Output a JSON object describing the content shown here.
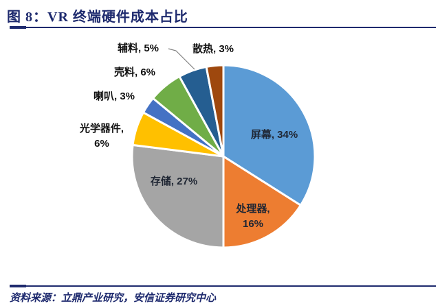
{
  "figure": {
    "title": "图 8：VR 终端硬件成本占比",
    "source": "资料来源：立鼎产业研究，安信证券研究中心"
  },
  "chart_data": {
    "type": "pie",
    "title": "VR 终端硬件成本占比",
    "unit": "%",
    "start_angle": "12 o'clock",
    "direction": "clockwise",
    "legend_position": "none (direct data labels)",
    "categories": [
      "屏幕",
      "处理器",
      "存储",
      "光学器件",
      "喇叭",
      "壳料",
      "辅料",
      "散热"
    ],
    "values": [
      34,
      16,
      27,
      6,
      3,
      6,
      5,
      3
    ],
    "slices": [
      {
        "name": "屏幕",
        "value": 34,
        "color": "#5B9BD5",
        "label_lines": [
          "屏幕, 34%"
        ],
        "label_placement": "inside"
      },
      {
        "name": "处理器",
        "value": 16,
        "color": "#ED7D31",
        "label_lines": [
          "处理器,",
          "16%"
        ],
        "label_placement": "inside"
      },
      {
        "name": "存储",
        "value": 27,
        "color": "#A5A5A5",
        "label_lines": [
          "存储, 27%"
        ],
        "label_placement": "inside"
      },
      {
        "name": "光学器件",
        "value": 6,
        "color": "#FFC000",
        "label_lines": [
          "光学器件,",
          "6%"
        ],
        "label_placement": "outside"
      },
      {
        "name": "喇叭",
        "value": 3,
        "color": "#4472C4",
        "label_lines": [
          "喇叭, 3%"
        ],
        "label_placement": "outside"
      },
      {
        "name": "壳料",
        "value": 6,
        "color": "#70AD47",
        "label_lines": [
          "壳料, 6%"
        ],
        "label_placement": "outside"
      },
      {
        "name": "辅料",
        "value": 5,
        "color": "#255E91",
        "label_lines": [
          "辅料, 5%"
        ],
        "label_placement": "outside-with-leader-line"
      },
      {
        "name": "散热",
        "value": 3,
        "color": "#9E480E",
        "label_lines": [
          "散热, 3%"
        ],
        "label_placement": "outside"
      }
    ]
  },
  "colors": {
    "accent_navy": "#1E2A6E",
    "slice_border": "#FFFFFF",
    "leader_line": "#7F7F7F",
    "label_text": "#1F2633",
    "background": "#FFFFFF"
  }
}
